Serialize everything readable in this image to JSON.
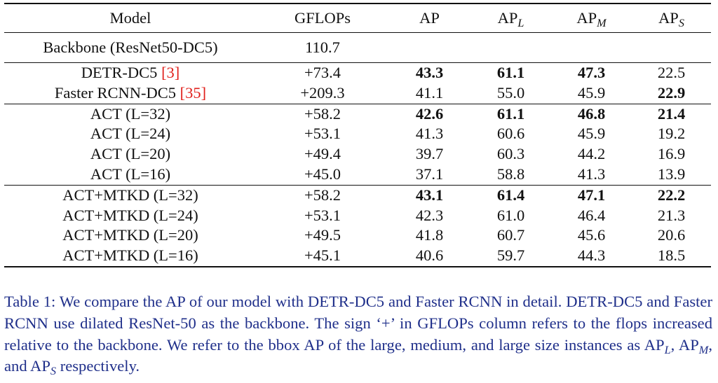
{
  "table": {
    "headers": {
      "model": "Model",
      "gflops": "GFLOPs",
      "ap": "AP",
      "apl": {
        "base": "AP",
        "sub": "L"
      },
      "apm": {
        "base": "AP",
        "sub": "M"
      },
      "aps": {
        "base": "AP",
        "sub": "S"
      }
    },
    "backbone": {
      "model": "Backbone (ResNet50-DC5)",
      "gflops": "110.7"
    },
    "groups": [
      {
        "rows": [
          {
            "model": "DETR-DC5 ",
            "ref": "[3]",
            "gflops": "+73.4",
            "ap": "43.3",
            "apl": "61.1",
            "apm": "47.3",
            "aps": "22.5",
            "bold": [
              "ap",
              "apl",
              "apm"
            ]
          },
          {
            "model": "Faster RCNN-DC5 ",
            "ref": "[35]",
            "gflops": "+209.3",
            "ap": "41.1",
            "apl": "55.0",
            "apm": "45.9",
            "aps": "22.9",
            "bold": [
              "aps"
            ]
          }
        ]
      },
      {
        "rows": [
          {
            "model": "ACT (L=32)",
            "gflops": "+58.2",
            "ap": "42.6",
            "apl": "61.1",
            "apm": "46.8",
            "aps": "21.4",
            "bold": [
              "ap",
              "apl",
              "apm",
              "aps"
            ]
          },
          {
            "model": "ACT (L=24)",
            "gflops": "+53.1",
            "ap": "41.3",
            "apl": "60.6",
            "apm": "45.9",
            "aps": "19.2",
            "bold": []
          },
          {
            "model": "ACT (L=20)",
            "gflops": "+49.4",
            "ap": "39.7",
            "apl": "60.3",
            "apm": "44.2",
            "aps": "16.9",
            "bold": []
          },
          {
            "model": "ACT (L=16)",
            "gflops": "+45.0",
            "ap": "37.1",
            "apl": "58.8",
            "apm": "41.3",
            "aps": "13.9",
            "bold": []
          }
        ]
      },
      {
        "rows": [
          {
            "model": "ACT+MTKD (L=32)",
            "gflops": "+58.2",
            "ap": "43.1",
            "apl": "61.4",
            "apm": "47.1",
            "aps": "22.2",
            "bold": [
              "ap",
              "apl",
              "apm",
              "aps"
            ]
          },
          {
            "model": "ACT+MTKD (L=24)",
            "gflops": "+53.1",
            "ap": "42.3",
            "apl": "61.0",
            "apm": "46.4",
            "aps": "21.3",
            "bold": []
          },
          {
            "model": "ACT+MTKD (L=20)",
            "gflops": "+49.5",
            "ap": "41.8",
            "apl": "60.7",
            "apm": "45.6",
            "aps": "20.6",
            "bold": []
          },
          {
            "model": "ACT+MTKD (L=16)",
            "gflops": "+45.1",
            "ap": "40.6",
            "apl": "59.7",
            "apm": "44.3",
            "aps": "18.5",
            "bold": []
          }
        ]
      }
    ]
  },
  "caption": {
    "text_1": "Table 1: We compare the AP of our model with DETR-DC5 and Faster RCNN in detail. DETR-DC5 and Faster RCNN use dilated ResNet-50 as the backbone. The sign ‘+’ in GFLOPs column refers to the flops increased relative to the backbone. We refer to the bbox AP of the large, medium, and large size instances as ",
    "ap": "AP",
    "sub_l": "L",
    "sep_1": ", ",
    "sub_m": "M",
    "sep_2": ", and ",
    "sub_s": "S",
    "text_2": " respectively."
  }
}
